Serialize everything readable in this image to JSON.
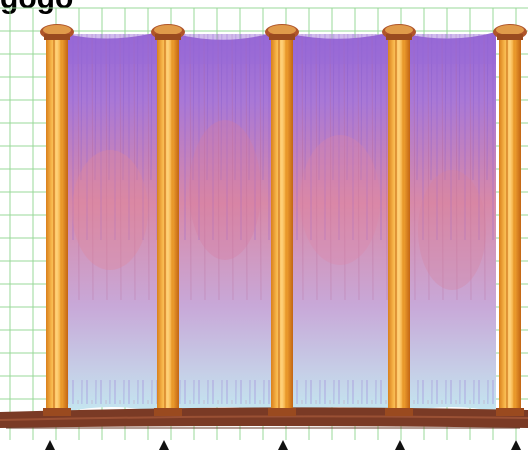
{
  "header": {
    "text": "gogo"
  },
  "drawing": {
    "column_count": 5,
    "curtain_panel_count": 4,
    "colors": {
      "column_orange": "#f0a230",
      "column_dark": "#c86a12",
      "column_highlight": "#ffd27a",
      "capital_brown": "#9a4a1f",
      "curtain_purple": "#9a6ad8",
      "curtain_pink": "#d27a9a",
      "curtain_light_blue": "#bfe2ee",
      "floor_brown": "#7a3a25",
      "grid_green": "#8fd48f",
      "arrow_black": "#111111"
    },
    "icons": [
      "column-icon",
      "curtain-icon",
      "floor-icon",
      "marker-arrow-icon",
      "grid-icon"
    ]
  }
}
